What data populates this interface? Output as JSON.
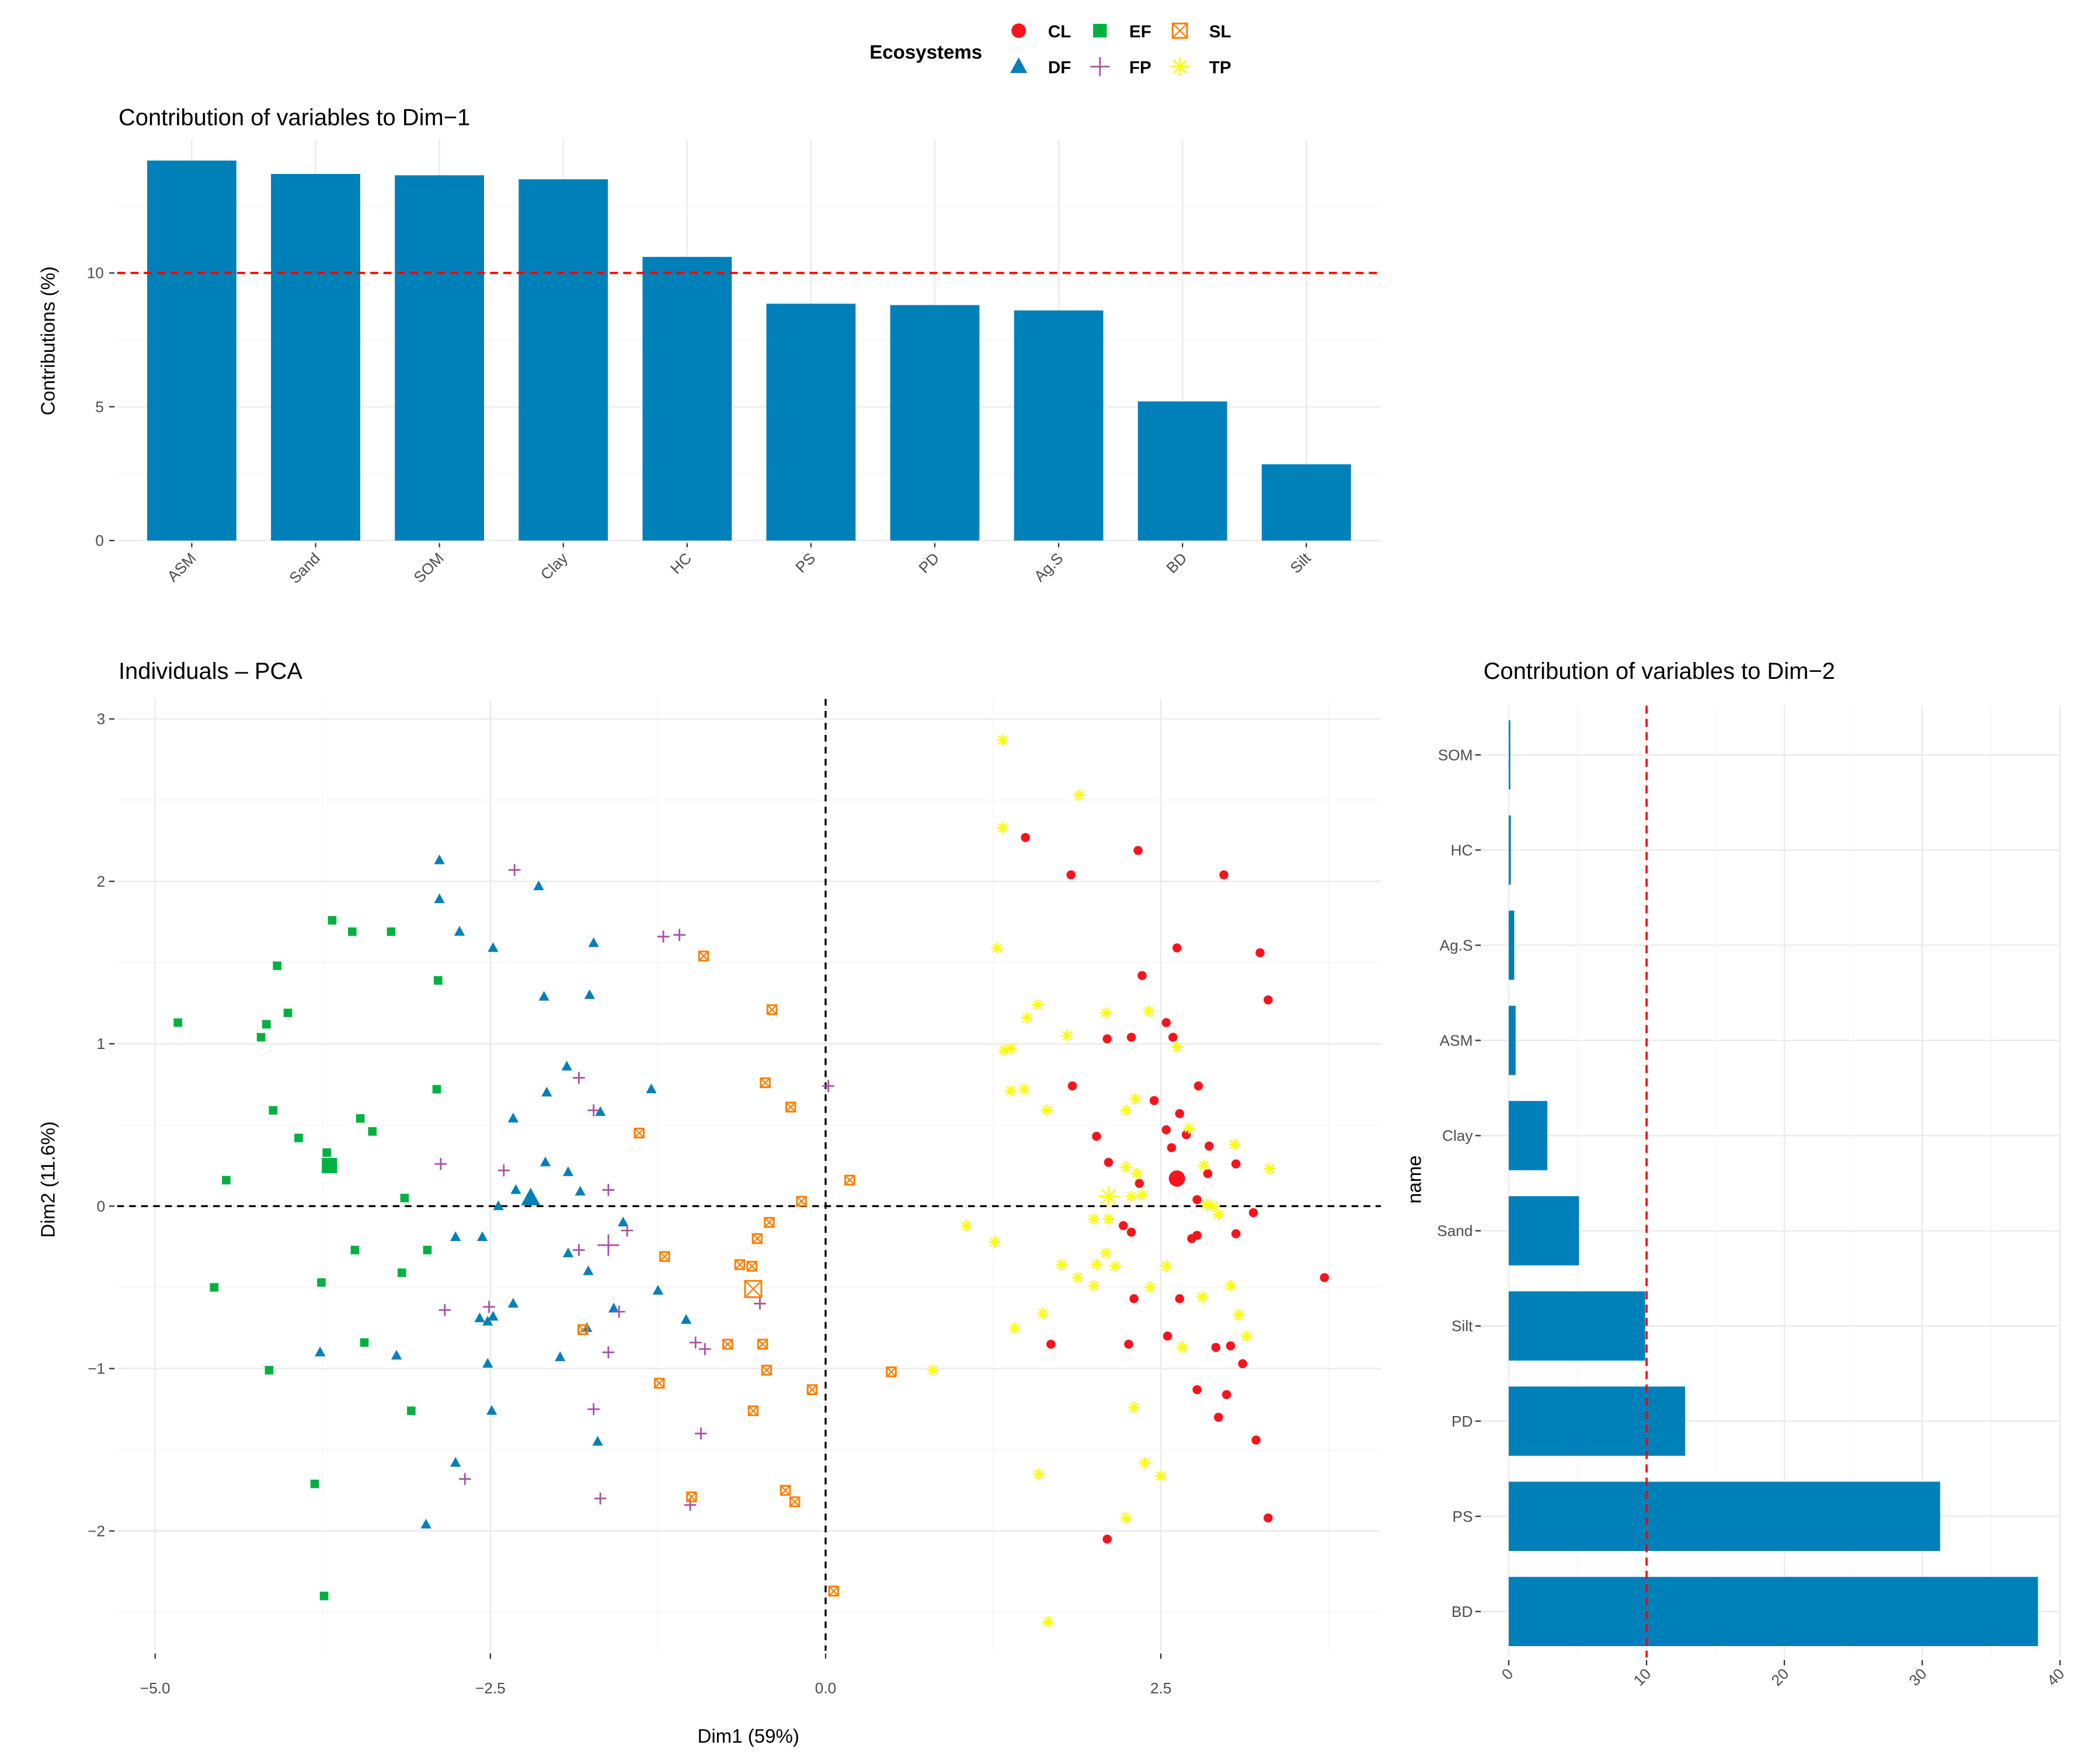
{
  "legend": {
    "title": "Ecosystems",
    "entries": [
      {
        "label": "CL",
        "shape": "circle",
        "color": "#f8141c"
      },
      {
        "label": "EF",
        "shape": "square",
        "color": "#00b140"
      },
      {
        "label": "SL",
        "shape": "square-x",
        "color": "#ff7f00"
      },
      {
        "label": "DF",
        "shape": "triangle",
        "color": "#0080b8"
      },
      {
        "label": "FP",
        "shape": "plus",
        "color": "#a94ca8"
      },
      {
        "label": "TP",
        "shape": "asterisk",
        "color": "#ffff00"
      }
    ]
  },
  "chart_data": [
    {
      "type": "bar",
      "title": "Contribution of variables to Dim−1",
      "xlabel": "",
      "ylabel": "Contributions (%)",
      "categories": [
        "ASM",
        "Sand",
        "SOM",
        "Clay",
        "HC",
        "PS",
        "PD",
        "Ag.S",
        "BD",
        "Silt"
      ],
      "values": [
        14.2,
        13.7,
        13.65,
        13.5,
        10.6,
        8.85,
        8.8,
        8.6,
        5.2,
        2.85
      ],
      "yticks": [
        "0",
        "5",
        "10"
      ],
      "ylim": [
        -0.5,
        14.8
      ],
      "reference_line": 10,
      "bar_color": "#0080b8",
      "grid": true
    },
    {
      "type": "scatter",
      "title": "Individuals – PCA",
      "xlabel": "Dim1 (59%)",
      "ylabel": "Dim2 (11.6%)",
      "xticks": [
        {
          "v": -5,
          "label": "−5.0"
        },
        {
          "v": -2.5,
          "label": "−2.5"
        },
        {
          "v": 0,
          "label": "0.0"
        },
        {
          "v": 2.5,
          "label": "2.5"
        }
      ],
      "yticks": [
        {
          "v": -2,
          "label": "−2"
        },
        {
          "v": -1,
          "label": "−1"
        },
        {
          "v": 0,
          "label": "0"
        },
        {
          "v": 1,
          "label": "1"
        },
        {
          "v": 2,
          "label": "2"
        },
        {
          "v": 3,
          "label": "3"
        }
      ],
      "xlim": [
        -5.28,
        4.14
      ],
      "ylim": [
        -2.75,
        3.12
      ],
      "grid": true,
      "series": [
        {
          "name": "EF",
          "centroid": [
            -3.7,
            0.25
          ],
          "points": [
            [
              -3.68,
              1.76
            ],
            [
              -3.53,
              1.69
            ],
            [
              -3.24,
              1.69
            ],
            [
              -4.09,
              1.48
            ],
            [
              -2.89,
              1.39
            ],
            [
              -4.83,
              1.13
            ],
            [
              -4.01,
              1.19
            ],
            [
              -4.17,
              1.12
            ],
            [
              -4.21,
              1.04
            ],
            [
              -2.9,
              0.72
            ],
            [
              -4.12,
              0.59
            ],
            [
              -3.47,
              0.54
            ],
            [
              -3.38,
              0.46
            ],
            [
              -3.93,
              0.42
            ],
            [
              -3.72,
              0.33
            ],
            [
              -4.47,
              0.16
            ],
            [
              -3.14,
              0.05
            ],
            [
              -3.51,
              -0.27
            ],
            [
              -2.97,
              -0.27
            ],
            [
              -3.76,
              -0.47
            ],
            [
              -3.16,
              -0.41
            ],
            [
              -4.56,
              -0.5
            ],
            [
              -3.44,
              -0.84
            ],
            [
              -4.15,
              -1.01
            ],
            [
              -3.09,
              -1.26
            ],
            [
              -3.81,
              -1.71
            ],
            [
              -3.74,
              -2.4
            ]
          ]
        },
        {
          "name": "DF",
          "centroid": [
            -2.2,
            0.05
          ],
          "points": [
            [
              -2.88,
              2.13
            ],
            [
              -2.88,
              1.89
            ],
            [
              -2.73,
              1.69
            ],
            [
              -2.14,
              1.97
            ],
            [
              -2.48,
              1.59
            ],
            [
              -1.73,
              1.62
            ],
            [
              -2.1,
              1.29
            ],
            [
              -1.76,
              1.3
            ],
            [
              -1.93,
              0.86
            ],
            [
              -2.08,
              0.7
            ],
            [
              -1.3,
              0.72
            ],
            [
              -1.68,
              0.58
            ],
            [
              -2.33,
              0.54
            ],
            [
              -2.09,
              0.27
            ],
            [
              -1.92,
              0.21
            ],
            [
              -1.83,
              0.09
            ],
            [
              -2.31,
              0.1
            ],
            [
              -2.44,
              0.0
            ],
            [
              -1.51,
              -0.1
            ],
            [
              -2.76,
              -0.19
            ],
            [
              -2.56,
              -0.19
            ],
            [
              -1.92,
              -0.29
            ],
            [
              -1.77,
              -0.4
            ],
            [
              -1.25,
              -0.52
            ],
            [
              -2.33,
              -0.6
            ],
            [
              -1.58,
              -0.63
            ],
            [
              -2.58,
              -0.69
            ],
            [
              -2.48,
              -0.68
            ],
            [
              -2.52,
              -0.71
            ],
            [
              -1.04,
              -0.7
            ],
            [
              -1.78,
              -0.75
            ],
            [
              -3.77,
              -0.9
            ],
            [
              -3.2,
              -0.92
            ],
            [
              -1.98,
              -0.93
            ],
            [
              -2.52,
              -0.97
            ],
            [
              -2.49,
              -1.26
            ],
            [
              -1.7,
              -1.45
            ],
            [
              -2.76,
              -1.58
            ],
            [
              -2.98,
              -1.96
            ]
          ]
        },
        {
          "name": "FP",
          "centroid": [
            -1.62,
            -0.24
          ],
          "points": [
            [
              -2.32,
              2.07
            ],
            [
              -1.21,
              1.66
            ],
            [
              -1.09,
              1.67
            ],
            [
              -1.84,
              0.79
            ],
            [
              0.02,
              0.74
            ],
            [
              -1.73,
              0.59
            ],
            [
              -2.87,
              0.26
            ],
            [
              -2.4,
              0.22
            ],
            [
              -1.62,
              0.1
            ],
            [
              -1.48,
              -0.15
            ],
            [
              -1.84,
              -0.27
            ],
            [
              -2.51,
              -0.62
            ],
            [
              -2.84,
              -0.64
            ],
            [
              -1.54,
              -0.65
            ],
            [
              -0.49,
              -0.6
            ],
            [
              -0.97,
              -0.84
            ],
            [
              -0.9,
              -0.88
            ],
            [
              -1.62,
              -0.9
            ],
            [
              -1.73,
              -1.25
            ],
            [
              -0.93,
              -1.4
            ],
            [
              -2.69,
              -1.68
            ],
            [
              -1.68,
              -1.8
            ],
            [
              -1.01,
              -1.84
            ]
          ]
        },
        {
          "name": "SL",
          "centroid": [
            -0.54,
            -0.51
          ],
          "points": [
            [
              -0.91,
              1.54
            ],
            [
              -0.4,
              1.21
            ],
            [
              -0.45,
              0.76
            ],
            [
              -0.26,
              0.61
            ],
            [
              -1.39,
              0.45
            ],
            [
              0.18,
              0.16
            ],
            [
              -0.18,
              0.03
            ],
            [
              -0.42,
              -0.1
            ],
            [
              -0.51,
              -0.2
            ],
            [
              -1.2,
              -0.31
            ],
            [
              -0.64,
              -0.36
            ],
            [
              -0.55,
              -0.37
            ],
            [
              -1.81,
              -0.76
            ],
            [
              -0.73,
              -0.85
            ],
            [
              -0.47,
              -0.85
            ],
            [
              -0.44,
              -1.01
            ],
            [
              0.49,
              -1.02
            ],
            [
              -1.24,
              -1.09
            ],
            [
              -0.1,
              -1.13
            ],
            [
              -0.54,
              -1.26
            ],
            [
              -0.3,
              -1.75
            ],
            [
              -0.23,
              -1.82
            ],
            [
              -1.0,
              -1.79
            ],
            [
              0.06,
              -2.37
            ]
          ]
        },
        {
          "name": "CL",
          "centroid": [
            2.62,
            0.17
          ],
          "points": [
            [
              1.49,
              2.27
            ],
            [
              2.33,
              2.19
            ],
            [
              1.83,
              2.04
            ],
            [
              2.97,
              2.04
            ],
            [
              2.62,
              1.59
            ],
            [
              3.24,
              1.56
            ],
            [
              2.36,
              1.42
            ],
            [
              3.3,
              1.27
            ],
            [
              2.54,
              1.13
            ],
            [
              2.1,
              1.03
            ],
            [
              2.28,
              1.04
            ],
            [
              2.59,
              1.04
            ],
            [
              2.78,
              0.74
            ],
            [
              1.84,
              0.74
            ],
            [
              2.45,
              0.65
            ],
            [
              2.64,
              0.57
            ],
            [
              2.02,
              0.43
            ],
            [
              2.54,
              0.47
            ],
            [
              2.58,
              0.36
            ],
            [
              2.69,
              0.44
            ],
            [
              2.86,
              0.37
            ],
            [
              2.11,
              0.27
            ],
            [
              3.06,
              0.26
            ],
            [
              2.85,
              0.2
            ],
            [
              2.34,
              0.14
            ],
            [
              2.77,
              0.04
            ],
            [
              3.19,
              -0.04
            ],
            [
              2.22,
              -0.12
            ],
            [
              2.28,
              -0.16
            ],
            [
              3.06,
              -0.17
            ],
            [
              2.77,
              -0.18
            ],
            [
              2.73,
              -0.2
            ],
            [
              3.72,
              -0.44
            ],
            [
              2.3,
              -0.57
            ],
            [
              2.64,
              -0.57
            ],
            [
              1.68,
              -0.85
            ],
            [
              2.26,
              -0.85
            ],
            [
              2.55,
              -0.8
            ],
            [
              2.91,
              -0.87
            ],
            [
              3.02,
              -0.86
            ],
            [
              3.11,
              -0.97
            ],
            [
              2.77,
              -1.13
            ],
            [
              2.99,
              -1.16
            ],
            [
              2.93,
              -1.3
            ],
            [
              3.21,
              -1.44
            ],
            [
              3.3,
              -1.92
            ],
            [
              2.1,
              -2.05
            ]
          ]
        },
        {
          "name": "TP",
          "centroid": [
            2.11,
            0.06
          ],
          "points": [
            [
              1.32,
              2.87
            ],
            [
              1.89,
              2.53
            ],
            [
              1.32,
              2.33
            ],
            [
              1.28,
              1.59
            ],
            [
              1.58,
              1.24
            ],
            [
              1.5,
              1.16
            ],
            [
              2.09,
              1.19
            ],
            [
              2.41,
              1.2
            ],
            [
              1.8,
              1.05
            ],
            [
              2.62,
              0.98
            ],
            [
              1.33,
              0.96
            ],
            [
              1.38,
              0.97
            ],
            [
              1.38,
              0.71
            ],
            [
              1.48,
              0.72
            ],
            [
              1.65,
              0.59
            ],
            [
              2.31,
              0.66
            ],
            [
              2.24,
              0.59
            ],
            [
              2.71,
              0.48
            ],
            [
              3.05,
              0.38
            ],
            [
              2.24,
              0.24
            ],
            [
              2.32,
              0.2
            ],
            [
              2.82,
              0.25
            ],
            [
              3.31,
              0.23
            ],
            [
              2.28,
              0.06
            ],
            [
              2.36,
              0.07
            ],
            [
              2.84,
              0.01
            ],
            [
              2.89,
              0.0
            ],
            [
              2.93,
              -0.05
            ],
            [
              1.05,
              -0.12
            ],
            [
              2.0,
              -0.08
            ],
            [
              2.11,
              -0.08
            ],
            [
              1.26,
              -0.22
            ],
            [
              2.09,
              -0.29
            ],
            [
              1.76,
              -0.36
            ],
            [
              2.02,
              -0.36
            ],
            [
              2.16,
              -0.37
            ],
            [
              2.54,
              -0.37
            ],
            [
              1.88,
              -0.44
            ],
            [
              2.42,
              -0.5
            ],
            [
              2.0,
              -0.49
            ],
            [
              2.81,
              -0.56
            ],
            [
              3.02,
              -0.49
            ],
            [
              1.62,
              -0.66
            ],
            [
              1.41,
              -0.75
            ],
            [
              3.08,
              -0.67
            ],
            [
              3.14,
              -0.8
            ],
            [
              2.66,
              -0.87
            ],
            [
              0.8,
              -1.01
            ],
            [
              2.3,
              -1.24
            ],
            [
              2.38,
              -1.58
            ],
            [
              2.5,
              -1.66
            ],
            [
              1.59,
              -1.65
            ],
            [
              2.24,
              -1.92
            ],
            [
              1.66,
              -2.56
            ]
          ]
        }
      ]
    },
    {
      "type": "bar",
      "orientation": "horizontal",
      "title": "Contribution of variables to Dim−2",
      "xlabel": "",
      "ylabel": "name",
      "categories": [
        "SOM",
        "HC",
        "Ag.S",
        "ASM",
        "Clay",
        "Sand",
        "Silt",
        "PD",
        "PS",
        "BD"
      ],
      "values": [
        0.1,
        0.15,
        0.4,
        0.5,
        2.8,
        5.1,
        9.9,
        12.8,
        31.3,
        38.4
      ],
      "xticks": [
        "0",
        "10",
        "20",
        "30",
        "40"
      ],
      "xlim": [
        -2.7,
        40
      ],
      "reference_line": 10,
      "bar_color": "#0080b8",
      "grid": true
    }
  ]
}
